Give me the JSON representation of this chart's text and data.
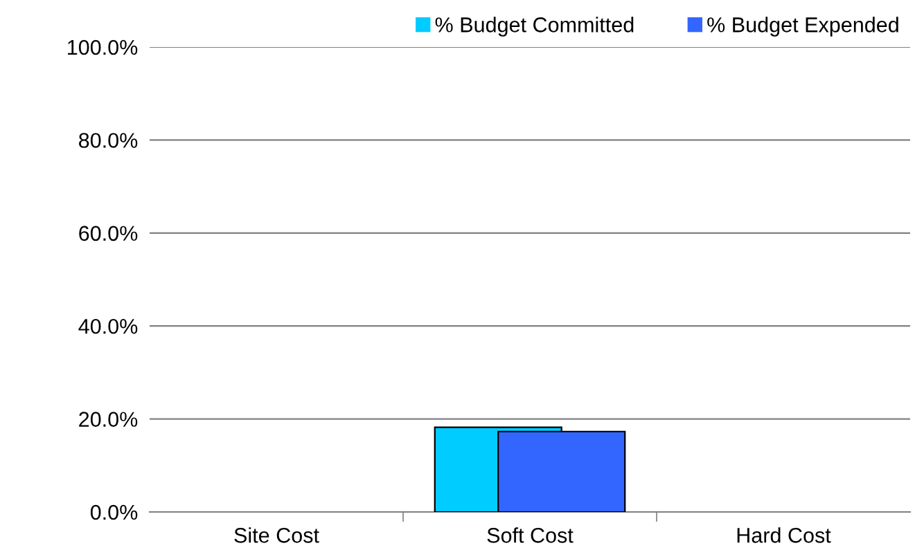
{
  "chart_data": {
    "type": "bar",
    "categories": [
      "Site Cost",
      "Soft Cost",
      "Hard Cost"
    ],
    "series": [
      {
        "name": "% Budget Committed",
        "color": "#00ccff",
        "values": [
          0,
          18.2,
          0
        ]
      },
      {
        "name": "% Budget Expended",
        "color": "#3366ff",
        "values": [
          0,
          17.3,
          0
        ]
      }
    ],
    "ylim": [
      0,
      100
    ],
    "yticks": [
      {
        "value": 0,
        "label": "0.0%"
      },
      {
        "value": 20,
        "label": "20.0%"
      },
      {
        "value": 40,
        "label": "40.0%"
      },
      {
        "value": 60,
        "label": "60.0%"
      },
      {
        "value": 80,
        "label": "80.0%"
      },
      {
        "value": 100,
        "label": "100.0%"
      }
    ],
    "grid": "y",
    "legend": "top right"
  }
}
